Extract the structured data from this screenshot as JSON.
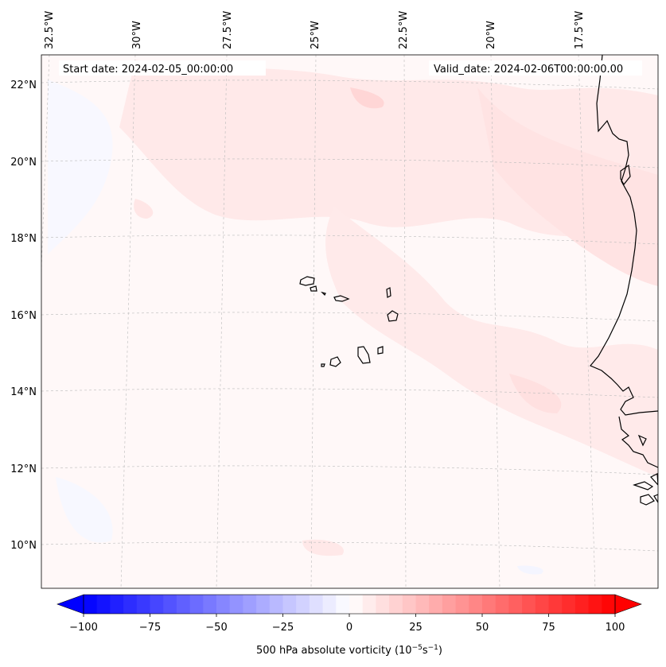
{
  "map": {
    "start_label": "Start date: 2024-02-05_00:00:00",
    "valid_label": "Valid_date: 2024-02-06T00:00:00.00",
    "lon_labels": [
      "32.5°W",
      "30°W",
      "27.5°W",
      "25°W",
      "22.5°W",
      "20°W",
      "17.5°W"
    ],
    "lat_labels": [
      "22°N",
      "20°N",
      "18°N",
      "16°N",
      "14°N",
      "12°N",
      "10°N"
    ],
    "field_colors": {
      "positive": "#ff0000",
      "negative": "#0000ff",
      "neutral": "#ffffff",
      "background_tint": "#fff6f6"
    }
  },
  "colorbar": {
    "label_prefix": "500 hPa absolute vorticity (10",
    "label_exp1": "−5",
    "label_mid": "s",
    "label_exp2": "−1",
    "label_suffix": ")",
    "tick_labels": [
      "−100",
      "−75",
      "−50",
      "−25",
      "0",
      "25",
      "50",
      "75",
      "100"
    ],
    "min": -100,
    "max": 100,
    "step": 5
  }
}
